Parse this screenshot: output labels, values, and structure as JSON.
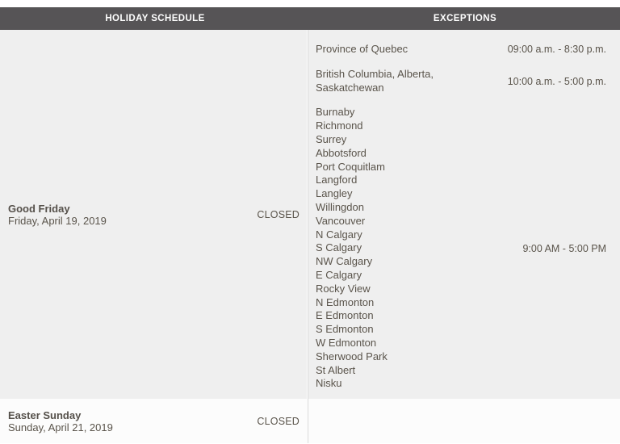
{
  "header": {
    "holiday_col": "HOLIDAY SCHEDULE",
    "exceptions_col": "EXCEPTIONS"
  },
  "rows": [
    {
      "holiday_name": "Good Friday",
      "holiday_date": "Friday, April 19, 2019",
      "status": "CLOSED",
      "exceptions": [
        {
          "locations": [
            "Province of Quebec"
          ],
          "hours": "09:00 a.m. - 8:30 p.m."
        },
        {
          "locations": [
            "British Columbia, Alberta,",
            "Saskatchewan"
          ],
          "hours": "10:00 a.m. - 5:00 p.m."
        },
        {
          "locations": [
            "Burnaby",
            "Richmond",
            "Surrey",
            "Abbotsford",
            "Port Coquitlam",
            "Langford",
            "Langley",
            "Willingdon",
            "Vancouver",
            "N Calgary",
            "S Calgary",
            "NW Calgary",
            "E Calgary",
            "Rocky View",
            "N Edmonton",
            "E Edmonton",
            "S Edmonton",
            "W Edmonton",
            "Sherwood Park",
            "St Albert",
            "Nisku"
          ],
          "hours": "9:00 AM - 5:00 PM"
        }
      ]
    },
    {
      "holiday_name": "Easter Sunday",
      "holiday_date": "Sunday, April 21, 2019",
      "status": "CLOSED"
    }
  ],
  "colors": {
    "header_bg": "#565456",
    "row_gray": "#efefef",
    "row_white": "#fcfcfc",
    "text": "#5a544b"
  }
}
